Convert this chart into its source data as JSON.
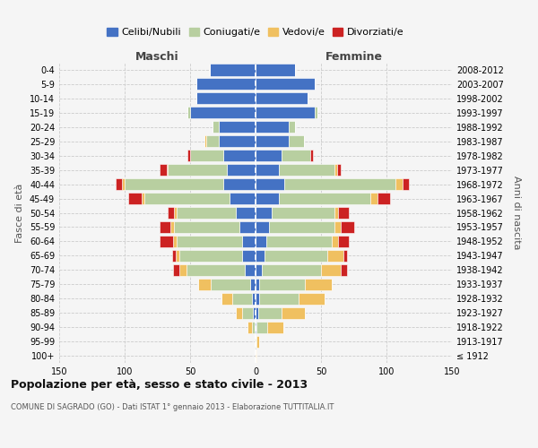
{
  "age_groups": [
    "100+",
    "95-99",
    "90-94",
    "85-89",
    "80-84",
    "75-79",
    "70-74",
    "65-69",
    "60-64",
    "55-59",
    "50-54",
    "45-49",
    "40-44",
    "35-39",
    "30-34",
    "25-29",
    "20-24",
    "15-19",
    "10-14",
    "5-9",
    "0-4"
  ],
  "birth_years": [
    "≤ 1912",
    "1913-1917",
    "1918-1922",
    "1923-1927",
    "1928-1932",
    "1933-1937",
    "1938-1942",
    "1943-1947",
    "1948-1952",
    "1953-1957",
    "1958-1962",
    "1963-1967",
    "1968-1972",
    "1973-1977",
    "1978-1982",
    "1983-1987",
    "1988-1992",
    "1993-1997",
    "1998-2002",
    "2003-2007",
    "2008-2012"
  ],
  "colors": {
    "celibi": "#4472c4",
    "coniugati": "#b8cfa0",
    "vedovi": "#f0c060",
    "divorziati": "#cc2222"
  },
  "maschi": {
    "celibi": [
      0,
      0,
      1,
      2,
      3,
      4,
      8,
      10,
      10,
      12,
      15,
      20,
      25,
      22,
      25,
      28,
      28,
      50,
      45,
      45,
      35
    ],
    "coniugati": [
      0,
      0,
      2,
      8,
      15,
      30,
      45,
      48,
      50,
      50,
      45,
      65,
      75,
      45,
      25,
      10,
      5,
      2,
      0,
      0,
      0
    ],
    "vedovi": [
      0,
      0,
      3,
      5,
      8,
      10,
      5,
      3,
      3,
      3,
      2,
      2,
      2,
      1,
      0,
      1,
      0,
      0,
      0,
      0,
      0
    ],
    "divorziati": [
      0,
      0,
      0,
      0,
      0,
      0,
      5,
      3,
      10,
      8,
      5,
      10,
      5,
      5,
      2,
      0,
      0,
      0,
      0,
      0,
      0
    ]
  },
  "femmine": {
    "celibi": [
      0,
      0,
      1,
      2,
      3,
      3,
      5,
      7,
      8,
      10,
      12,
      18,
      22,
      18,
      20,
      25,
      25,
      45,
      40,
      45,
      30
    ],
    "coniugati": [
      0,
      1,
      8,
      18,
      30,
      35,
      45,
      48,
      50,
      50,
      48,
      70,
      85,
      42,
      22,
      12,
      5,
      2,
      0,
      0,
      0
    ],
    "vedovi": [
      1,
      2,
      12,
      18,
      20,
      20,
      15,
      12,
      5,
      5,
      3,
      5,
      5,
      2,
      0,
      0,
      0,
      0,
      0,
      0,
      0
    ],
    "divorziati": [
      0,
      0,
      0,
      0,
      0,
      0,
      5,
      3,
      8,
      10,
      8,
      10,
      5,
      3,
      2,
      0,
      0,
      0,
      0,
      0,
      0
    ]
  },
  "xlim": 150,
  "title": "Popolazione per età, sesso e stato civile - 2013",
  "subtitle": "COMUNE DI SAGRADO (GO) - Dati ISTAT 1° gennaio 2013 - Elaborazione TUTTITALIA.IT",
  "ylabel": "Fasce di età",
  "ylabel2": "Anni di nascita",
  "xlabel_maschi": "Maschi",
  "xlabel_femmine": "Femmine",
  "legend_labels": [
    "Celibi/Nubili",
    "Coniugati/e",
    "Vedovi/e",
    "Divorziati/e"
  ],
  "bg_color": "#f5f5f5",
  "grid_color": "#cccccc"
}
